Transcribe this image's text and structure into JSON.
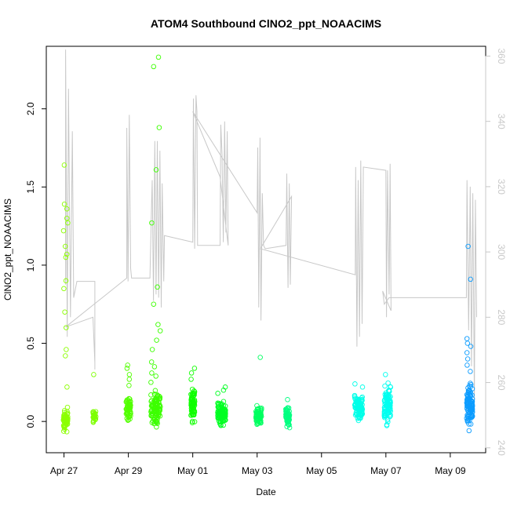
{
  "chart_data": {
    "type": "scatter",
    "title": "ATOM4 Southbound ClNO2_ppt_NOAACIMS",
    "xlabel": "Date",
    "ylabel": "ClNO2_ppt_NOAACIMS",
    "x_ticks": [
      "Apr 27",
      "Apr 29",
      "May 01",
      "May 03",
      "May 05",
      "May 07",
      "May 09"
    ],
    "x_tick_days": [
      0,
      2,
      4,
      6,
      8,
      10,
      12
    ],
    "xlim_days": [
      -0.55,
      13.1
    ],
    "ylim": [
      -0.2,
      2.4
    ],
    "y_ticks": [
      0.0,
      0.5,
      1.0,
      1.5,
      2.0
    ],
    "y_tick_labels": [
      "0.0",
      "0.5",
      "1.0",
      "1.5",
      "2.0"
    ],
    "y2_ticks": [
      240,
      260,
      280,
      300,
      320,
      340,
      360
    ],
    "y2lim": [
      238.5,
      363
    ],
    "y2_color": "#c8c8c8",
    "grid": false,
    "series": [
      {
        "clusters": [
          {
            "day": 0.05,
            "width": 0.14,
            "min": -0.11,
            "max": 0.12,
            "n": 70,
            "color": "#8cff00",
            "extra": [
              0.22,
              0.42,
              0.46,
              0.6,
              0.7,
              0.85,
              0.9,
              1.05,
              1.07,
              1.12,
              1.22,
              1.27,
              1.3,
              1.36,
              1.39,
              1.64
            ]
          },
          {
            "day": 0.95,
            "width": 0.1,
            "min": -0.02,
            "max": 0.08,
            "n": 22,
            "color": "#7dff00",
            "extra": [
              0.3
            ]
          },
          {
            "day": 2.0,
            "width": 0.14,
            "min": -0.03,
            "max": 0.2,
            "n": 55,
            "color": "#52ff00",
            "extra": [
              0.23,
              0.27,
              0.3,
              0.34,
              0.36
            ]
          },
          {
            "day": 2.85,
            "width": 0.3,
            "min": -0.05,
            "max": 0.22,
            "n": 110,
            "color": "#3cff00",
            "extra": [
              0.25,
              0.29,
              0.31,
              0.35,
              0.38,
              0.46,
              0.52,
              0.58,
              0.62,
              0.75,
              0.86,
              1.27,
              1.61,
              1.88,
              2.27,
              2.33
            ]
          },
          {
            "day": 4.0,
            "width": 0.12,
            "min": -0.02,
            "max": 0.25,
            "n": 70,
            "color": "#0fff00",
            "extra": [
              0.27,
              0.31,
              0.34
            ]
          },
          {
            "day": 4.9,
            "width": 0.25,
            "min": -0.05,
            "max": 0.15,
            "n": 95,
            "color": "#00ff22",
            "extra": [
              0.18,
              0.2,
              0.22
            ]
          },
          {
            "day": 6.05,
            "width": 0.18,
            "min": -0.05,
            "max": 0.12,
            "n": 80,
            "color": "#00ff60",
            "extra": [
              0.41
            ]
          },
          {
            "day": 6.95,
            "width": 0.12,
            "min": -0.07,
            "max": 0.12,
            "n": 55,
            "color": "#00ff80",
            "extra": [
              0.14
            ]
          },
          {
            "day": 9.15,
            "width": 0.25,
            "min": -0.04,
            "max": 0.2,
            "n": 95,
            "color": "#00ffe8",
            "extra": [
              0.22,
              0.24
            ]
          },
          {
            "day": 10.05,
            "width": 0.2,
            "min": -0.07,
            "max": 0.28,
            "n": 100,
            "color": "#00fff0",
            "extra": [
              0.3
            ]
          },
          {
            "day": 12.6,
            "width": 0.18,
            "min": -0.09,
            "max": 0.3,
            "n": 110,
            "color": "#0c9cff",
            "extra": [
              0.32,
              0.36,
              0.4,
              0.44,
              0.48,
              0.5,
              0.53,
              0.91,
              1.12
            ]
          }
        ]
      },
      {
        "axis": "right",
        "color": "#c8c8c8",
        "path": [
          [
            0.05,
            290
          ],
          [
            0.05,
            362
          ],
          [
            0.1,
            274
          ],
          [
            0.14,
            350
          ],
          [
            0.2,
            280
          ],
          [
            0.26,
            337
          ],
          [
            0.3,
            286
          ],
          [
            0.4,
            291
          ],
          [
            0.96,
            291
          ],
          [
            0.96,
            264
          ],
          [
            0.96,
            266
          ],
          [
            0.9,
            280
          ],
          [
            0.05,
            277
          ],
          [
            1.95,
            292
          ],
          [
            1.95,
            338
          ],
          [
            1.99,
            291
          ],
          [
            2.03,
            342
          ],
          [
            2.07,
            295
          ],
          [
            2.1,
            292
          ],
          [
            2.67,
            292
          ],
          [
            2.72,
            315
          ],
          [
            2.74,
            322
          ],
          [
            2.78,
            285
          ],
          [
            2.82,
            334
          ],
          [
            2.86,
            287
          ],
          [
            2.9,
            334
          ],
          [
            2.94,
            286
          ],
          [
            2.98,
            331
          ],
          [
            3.02,
            283
          ],
          [
            3.05,
            321
          ],
          [
            3.1,
            291
          ],
          [
            3.12,
            305
          ],
          [
            4.0,
            303
          ],
          [
            4.02,
            347
          ],
          [
            4.06,
            301
          ],
          [
            4.1,
            348
          ],
          [
            4.13,
            343
          ],
          [
            4.15,
            302
          ],
          [
            4.85,
            302
          ],
          [
            4.87,
            339
          ],
          [
            4.91,
            330
          ],
          [
            4.95,
            303
          ],
          [
            4.99,
            340
          ],
          [
            5.03,
            306
          ],
          [
            5.07,
            337
          ],
          [
            5.1,
            302
          ],
          [
            4.85,
            323
          ],
          [
            4.0,
            343
          ],
          [
            6.0,
            312
          ],
          [
            6.02,
            332
          ],
          [
            6.05,
            283
          ],
          [
            6.09,
            335
          ],
          [
            6.12,
            279
          ],
          [
            6.16,
            318
          ],
          [
            6.2,
            302
          ],
          [
            6.25,
            301
          ],
          [
            6.9,
            302
          ],
          [
            6.92,
            324
          ],
          [
            6.96,
            289
          ],
          [
            7.0,
            321
          ],
          [
            7.03,
            290
          ],
          [
            7.07,
            317
          ],
          [
            6.1,
            301
          ],
          [
            9.05,
            293
          ],
          [
            9.06,
            326
          ],
          [
            9.1,
            271
          ],
          [
            9.14,
            322
          ],
          [
            9.18,
            274
          ],
          [
            9.22,
            328
          ],
          [
            9.26,
            278
          ],
          [
            9.3,
            326
          ],
          [
            10.0,
            325
          ],
          [
            10.02,
            280
          ],
          [
            10.05,
            325
          ],
          [
            10.1,
            287
          ],
          [
            10.13,
            327
          ],
          [
            10.16,
            282
          ],
          [
            9.9,
            288
          ],
          [
            9.95,
            284
          ],
          [
            10.1,
            286
          ],
          [
            12.5,
            286
          ],
          [
            12.52,
            322
          ],
          [
            12.57,
            276
          ],
          [
            12.62,
            320
          ],
          [
            12.66,
            265
          ],
          [
            12.7,
            318
          ],
          [
            12.75,
            254
          ],
          [
            12.78,
            316
          ],
          [
            12.82,
            280
          ]
        ]
      }
    ]
  }
}
